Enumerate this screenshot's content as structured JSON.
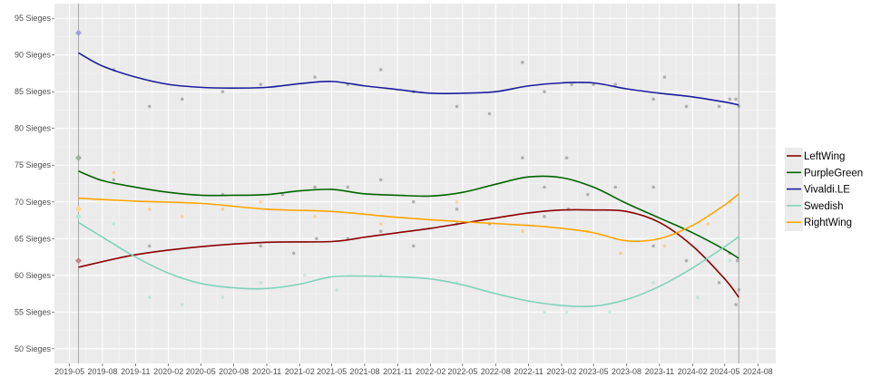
{
  "chart_data": {
    "type": "line",
    "title": "",
    "xlabel": "",
    "ylabel": "",
    "y_unit_suffix": " Sieges",
    "ylim": [
      48,
      97
    ],
    "xlim": [
      "2019-03-20",
      "2024-09-20"
    ],
    "y_ticks": [
      50,
      55,
      60,
      65,
      70,
      75,
      80,
      85,
      90,
      95
    ],
    "x_ticks": [
      "2019-05",
      "2019-08",
      "2019-11",
      "2020-02",
      "2020-05",
      "2020-08",
      "2020-11",
      "2021-02",
      "2021-05",
      "2021-08",
      "2021-11",
      "2022-02",
      "2022-05",
      "2022-08",
      "2022-11",
      "2023-02",
      "2023-05",
      "2023-08",
      "2023-11",
      "2024-02",
      "2024-05",
      "2024-08"
    ],
    "grid": true,
    "legend_position": "right",
    "reference_lines_x": [
      "2019-05-26",
      "2024-06-09"
    ],
    "series": [
      {
        "name": "LeftWing",
        "color": "#8b0000",
        "election": 62,
        "smooth": [
          [
            "2019-05-26",
            61.1
          ],
          [
            "2019-11-01",
            62.8
          ],
          [
            "2020-05-01",
            63.9
          ],
          [
            "2020-11-01",
            64.5
          ],
          [
            "2021-05-01",
            64.6
          ],
          [
            "2021-08-01",
            65.2
          ],
          [
            "2021-11-01",
            65.8
          ],
          [
            "2022-02-01",
            66.4
          ],
          [
            "2022-05-01",
            67.1
          ],
          [
            "2022-08-01",
            67.8
          ],
          [
            "2022-11-01",
            68.5
          ],
          [
            "2023-02-01",
            68.9
          ],
          [
            "2023-05-01",
            68.9
          ],
          [
            "2023-08-01",
            68.7
          ],
          [
            "2023-11-01",
            67.2
          ],
          [
            "2024-02-01",
            64.0
          ],
          [
            "2024-05-01",
            59.5
          ],
          [
            "2024-06-09",
            57.0
          ]
        ],
        "polls": [
          [
            "2019-12-10",
            64
          ],
          [
            "2020-10-15",
            64
          ],
          [
            "2021-01-15",
            63
          ],
          [
            "2021-03-20",
            65
          ],
          [
            "2021-06-15",
            65
          ],
          [
            "2021-09-15",
            66
          ],
          [
            "2021-12-15",
            64
          ],
          [
            "2022-04-15",
            67
          ],
          [
            "2022-07-15",
            67
          ],
          [
            "2022-12-15",
            68
          ],
          [
            "2023-02-20",
            69
          ],
          [
            "2023-10-15",
            64
          ],
          [
            "2024-01-15",
            62
          ],
          [
            "2024-04-15",
            59
          ],
          [
            "2024-06-01",
            56
          ],
          [
            "2024-06-09",
            58
          ]
        ]
      },
      {
        "name": "PurpleGreen",
        "color": "#006400",
        "election": 76,
        "smooth": [
          [
            "2019-05-26",
            74.2
          ],
          [
            "2019-08-01",
            72.9
          ],
          [
            "2019-11-01",
            72.0
          ],
          [
            "2020-02-01",
            71.3
          ],
          [
            "2020-05-01",
            70.9
          ],
          [
            "2020-08-01",
            70.9
          ],
          [
            "2020-11-01",
            71.0
          ],
          [
            "2021-02-01",
            71.5
          ],
          [
            "2021-05-01",
            71.7
          ],
          [
            "2021-08-01",
            71.1
          ],
          [
            "2021-11-01",
            70.9
          ],
          [
            "2022-02-01",
            70.8
          ],
          [
            "2022-05-01",
            71.3
          ],
          [
            "2022-08-01",
            72.4
          ],
          [
            "2022-11-01",
            73.4
          ],
          [
            "2023-02-01",
            73.3
          ],
          [
            "2023-05-01",
            72.0
          ],
          [
            "2023-08-01",
            69.8
          ],
          [
            "2023-11-01",
            67.8
          ],
          [
            "2024-02-01",
            65.8
          ],
          [
            "2024-05-01",
            63.5
          ],
          [
            "2024-06-09",
            62.3
          ]
        ],
        "polls": [
          [
            "2019-09-01",
            73
          ],
          [
            "2020-07-01",
            71
          ],
          [
            "2020-12-15",
            71
          ],
          [
            "2021-03-15",
            72
          ],
          [
            "2021-06-15",
            72
          ],
          [
            "2021-09-15",
            73
          ],
          [
            "2021-12-15",
            70
          ],
          [
            "2022-04-15",
            69
          ],
          [
            "2022-10-15",
            76
          ],
          [
            "2022-12-15",
            72
          ],
          [
            "2023-02-15",
            76
          ],
          [
            "2023-04-15",
            71
          ],
          [
            "2023-07-01",
            72
          ],
          [
            "2023-10-15",
            72
          ],
          [
            "2024-05-15",
            63
          ],
          [
            "2024-06-05",
            62
          ]
        ]
      },
      {
        "name": "Vivaldi.LE",
        "color": "#1c1c9c",
        "election": 93,
        "smooth": [
          [
            "2019-05-26",
            90.3
          ],
          [
            "2019-08-01",
            88.5
          ],
          [
            "2019-11-01",
            87.0
          ],
          [
            "2020-02-01",
            86.0
          ],
          [
            "2020-05-01",
            85.6
          ],
          [
            "2020-08-01",
            85.5
          ],
          [
            "2020-11-01",
            85.6
          ],
          [
            "2021-02-01",
            86.1
          ],
          [
            "2021-05-01",
            86.4
          ],
          [
            "2021-08-01",
            85.8
          ],
          [
            "2021-11-01",
            85.3
          ],
          [
            "2022-02-01",
            84.8
          ],
          [
            "2022-05-01",
            84.8
          ],
          [
            "2022-08-01",
            85.0
          ],
          [
            "2022-11-01",
            85.8
          ],
          [
            "2023-02-01",
            86.2
          ],
          [
            "2023-05-01",
            86.2
          ],
          [
            "2023-08-01",
            85.4
          ],
          [
            "2023-11-01",
            84.8
          ],
          [
            "2024-02-01",
            84.3
          ],
          [
            "2024-05-01",
            83.6
          ],
          [
            "2024-06-09",
            83.2
          ]
        ],
        "polls": [
          [
            "2019-09-01",
            88
          ],
          [
            "2019-12-10",
            83
          ],
          [
            "2020-03-10",
            84
          ],
          [
            "2020-07-01",
            85
          ],
          [
            "2020-10-15",
            86
          ],
          [
            "2021-03-15",
            87
          ],
          [
            "2021-06-15",
            86
          ],
          [
            "2021-09-15",
            88
          ],
          [
            "2021-12-15",
            85
          ],
          [
            "2022-04-15",
            83
          ],
          [
            "2022-07-15",
            82
          ],
          [
            "2022-10-15",
            89
          ],
          [
            "2022-12-15",
            85
          ],
          [
            "2023-03-01",
            86
          ],
          [
            "2023-05-01",
            86
          ],
          [
            "2023-07-01",
            86
          ],
          [
            "2023-10-15",
            84
          ],
          [
            "2023-11-15",
            87
          ],
          [
            "2024-01-15",
            83
          ],
          [
            "2024-04-15",
            83
          ],
          [
            "2024-05-15",
            84
          ],
          [
            "2024-06-01",
            84
          ],
          [
            "2024-06-09",
            83
          ]
        ]
      },
      {
        "name": "Swedish",
        "color": "#7fd3bb",
        "election": 68,
        "smooth": [
          [
            "2019-05-26",
            67.2
          ],
          [
            "2019-08-01",
            65.2
          ],
          [
            "2019-11-01",
            62.5
          ],
          [
            "2020-02-01",
            60.3
          ],
          [
            "2020-05-01",
            58.9
          ],
          [
            "2020-08-01",
            58.3
          ],
          [
            "2020-11-01",
            58.2
          ],
          [
            "2021-02-01",
            58.8
          ],
          [
            "2021-05-01",
            59.8
          ],
          [
            "2021-08-01",
            59.9
          ],
          [
            "2021-11-01",
            59.8
          ],
          [
            "2022-02-01",
            59.5
          ],
          [
            "2022-05-01",
            58.7
          ],
          [
            "2022-08-01",
            57.5
          ],
          [
            "2022-11-01",
            56.5
          ],
          [
            "2023-02-01",
            55.9
          ],
          [
            "2023-05-01",
            55.8
          ],
          [
            "2023-08-01",
            56.7
          ],
          [
            "2023-11-01",
            58.5
          ],
          [
            "2024-02-01",
            61.0
          ],
          [
            "2024-05-01",
            63.9
          ],
          [
            "2024-06-09",
            65.3
          ]
        ],
        "polls": [
          [
            "2019-09-01",
            67
          ],
          [
            "2019-12-10",
            57
          ],
          [
            "2020-03-10",
            56
          ],
          [
            "2020-07-01",
            57
          ],
          [
            "2020-10-15",
            59
          ],
          [
            "2021-02-15",
            60
          ],
          [
            "2021-05-15",
            58
          ],
          [
            "2021-09-15",
            60
          ],
          [
            "2022-04-15",
            59
          ],
          [
            "2022-12-15",
            55
          ],
          [
            "2023-02-15",
            55
          ],
          [
            "2023-06-15",
            55
          ],
          [
            "2023-10-15",
            59
          ],
          [
            "2024-02-15",
            57
          ],
          [
            "2024-05-15",
            62
          ],
          [
            "2024-06-09",
            65
          ]
        ]
      },
      {
        "name": "RightWing",
        "color": "#ffa500",
        "election": 69,
        "smooth": [
          [
            "2019-05-26",
            70.5
          ],
          [
            "2019-11-01",
            70.1
          ],
          [
            "2020-05-01",
            69.8
          ],
          [
            "2020-11-01",
            69.0
          ],
          [
            "2021-05-01",
            68.7
          ],
          [
            "2021-11-01",
            67.9
          ],
          [
            "2022-05-01",
            67.3
          ],
          [
            "2022-11-01",
            66.8
          ],
          [
            "2023-02-01",
            66.4
          ],
          [
            "2023-05-01",
            65.8
          ],
          [
            "2023-08-01",
            64.7
          ],
          [
            "2023-11-01",
            65.0
          ],
          [
            "2024-02-01",
            66.8
          ],
          [
            "2024-05-01",
            69.6
          ],
          [
            "2024-06-09",
            71.1
          ]
        ],
        "polls": [
          [
            "2019-09-01",
            74
          ],
          [
            "2019-12-10",
            69
          ],
          [
            "2020-03-10",
            68
          ],
          [
            "2020-07-01",
            69
          ],
          [
            "2020-10-15",
            70
          ],
          [
            "2021-03-15",
            68
          ],
          [
            "2021-09-15",
            67
          ],
          [
            "2022-04-15",
            70
          ],
          [
            "2022-07-15",
            67
          ],
          [
            "2022-10-15",
            66
          ],
          [
            "2023-04-15",
            66
          ],
          [
            "2023-07-15",
            63
          ],
          [
            "2023-11-15",
            64
          ],
          [
            "2024-03-15",
            67
          ],
          [
            "2024-05-15",
            70
          ]
        ]
      }
    ]
  }
}
